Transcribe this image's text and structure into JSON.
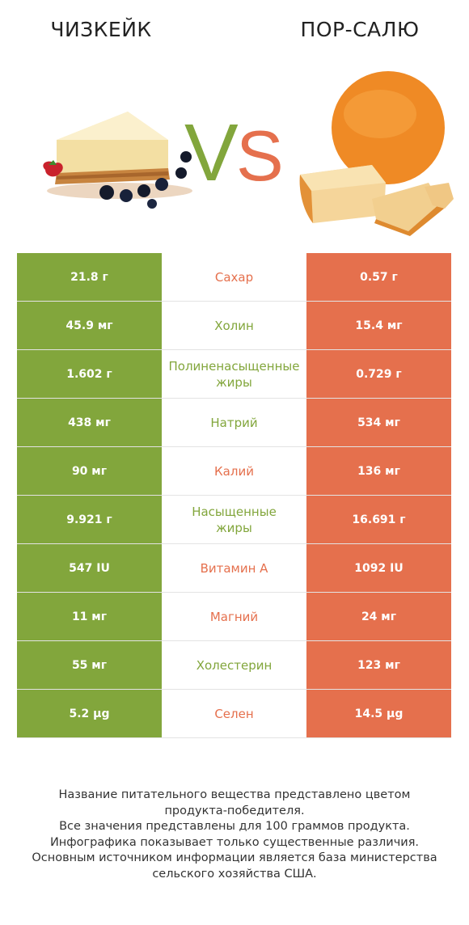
{
  "header": {
    "left_title": "ЧИЗКЕЙК",
    "right_title": "ПОР-САЛЮ",
    "vs_v": "V",
    "vs_s": "S"
  },
  "colors": {
    "winner_left": "#82a63c",
    "winner_right": "#e5704d"
  },
  "rows": [
    {
      "left": "21.8 г",
      "nutrient": "Сахар",
      "right": "0.57 г",
      "winner": "right"
    },
    {
      "left": "45.9 мг",
      "nutrient": "Холин",
      "right": "15.4 мг",
      "winner": "left"
    },
    {
      "left": "1.602 г",
      "nutrient": "Полиненасыщенные жиры",
      "right": "0.729 г",
      "winner": "left"
    },
    {
      "left": "438 мг",
      "nutrient": "Натрий",
      "right": "534 мг",
      "winner": "left"
    },
    {
      "left": "90 мг",
      "nutrient": "Калий",
      "right": "136 мг",
      "winner": "right"
    },
    {
      "left": "9.921 г",
      "nutrient": "Насыщенные жиры",
      "right": "16.691 г",
      "winner": "left"
    },
    {
      "left": "547 IU",
      "nutrient": "Витамин А",
      "right": "1092 IU",
      "winner": "right"
    },
    {
      "left": "11 мг",
      "nutrient": "Магний",
      "right": "24 мг",
      "winner": "right"
    },
    {
      "left": "55 мг",
      "nutrient": "Холестерин",
      "right": "123 мг",
      "winner": "left"
    },
    {
      "left": "5.2 µg",
      "nutrient": "Селен",
      "right": "14.5 µg",
      "winner": "right"
    }
  ],
  "footer": {
    "line1": "Название питательного вещества представлено цветом",
    "line2": "продукта-победителя.",
    "line3": "Все значения представлены для 100 граммов продукта.",
    "line4": "Инфографика показывает только существенные различия.",
    "line5": "Основным источником информации является база министерства",
    "line6": "сельского хозяйства США."
  }
}
